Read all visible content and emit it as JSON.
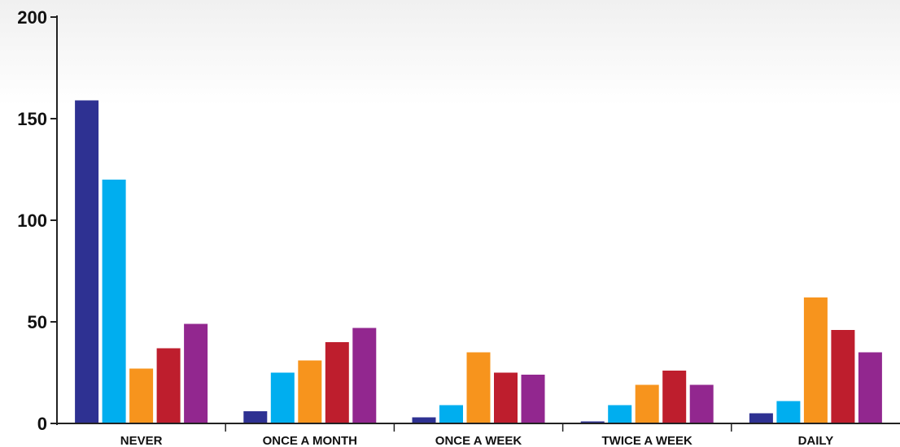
{
  "chart_data": {
    "type": "bar",
    "categories": [
      "NEVER",
      "ONCE A MONTH",
      "ONCE A WEEK",
      "TWICE A WEEK",
      "DAILY"
    ],
    "series": [
      {
        "color": "#2e3192",
        "values": [
          159,
          6,
          3,
          1,
          5
        ]
      },
      {
        "color": "#00aeef",
        "values": [
          120,
          25,
          9,
          9,
          11
        ]
      },
      {
        "color": "#f7941d",
        "values": [
          27,
          31,
          35,
          19,
          62
        ]
      },
      {
        "color": "#be1e2d",
        "values": [
          37,
          40,
          25,
          26,
          46
        ]
      },
      {
        "color": "#92278f",
        "values": [
          49,
          47,
          24,
          19,
          35
        ]
      }
    ],
    "yticks": [
      "0",
      "50",
      "100",
      "150",
      "200"
    ],
    "ylim": [
      0,
      200
    ],
    "title": "",
    "xlabel": "",
    "ylabel": "",
    "grid": false,
    "legend": "none"
  }
}
